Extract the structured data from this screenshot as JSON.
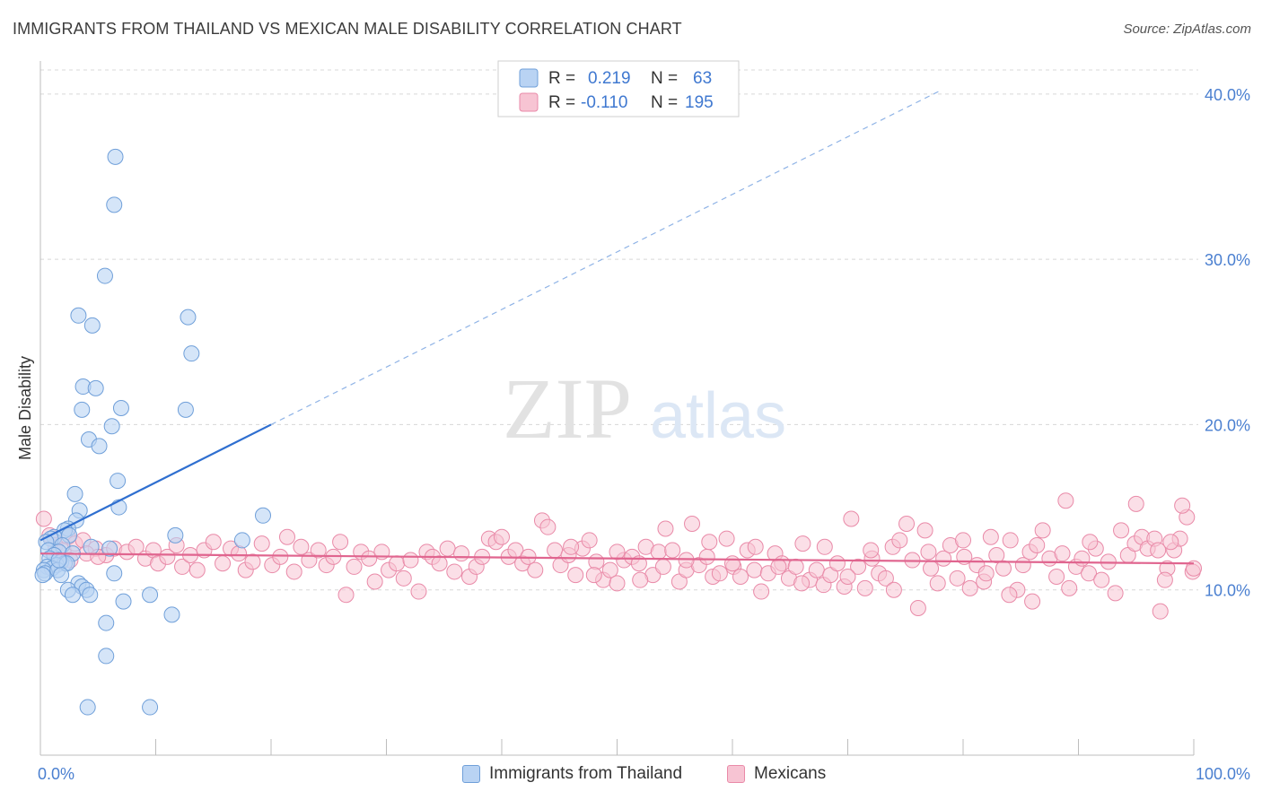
{
  "title": "IMMIGRANTS FROM THAILAND VS MEXICAN MALE DISABILITY CORRELATION CHART",
  "source": "Source: ZipAtlas.com",
  "watermark": {
    "zip": "ZIP",
    "atlas": "atlas"
  },
  "colors": {
    "blue_fill": "#b9d3f3",
    "blue_stroke": "#6f9fd9",
    "blue_line": "#2f6fd0",
    "pink_fill": "#f7c4d3",
    "pink_stroke": "#e98aa8",
    "pink_line": "#e0658f",
    "axis_label": "#4a7fd0",
    "grid": "#d8d8d8"
  },
  "legend_box": {
    "rows": [
      {
        "r_label": "R =",
        "r_value": "0.219",
        "n_label": "N =",
        "n_value": "63"
      },
      {
        "r_label": "R =",
        "r_value": "-0.110",
        "n_label": "N =",
        "n_value": "195"
      }
    ]
  },
  "chart_data": {
    "type": "scatter",
    "ylabel": "Male Disability",
    "xlabel": "",
    "xlim": [
      0,
      100
    ],
    "ylim": [
      0,
      42
    ],
    "x_tick_labels": [
      "0.0%",
      "100.0%"
    ],
    "y_ticks": [
      10,
      20,
      30,
      40
    ],
    "y_tick_labels": [
      "10.0%",
      "20.0%",
      "30.0%",
      "40.0%"
    ],
    "grid": true,
    "legend_position": "top-center",
    "series": [
      {
        "name": "Immigrants from Thailand",
        "trend": {
          "x0": 0,
          "y0": 13.0,
          "x1": 20,
          "y1": 20.0,
          "dash_to_x": 78,
          "dash_to_y": 40.2
        },
        "points": [
          [
            6.5,
            36.2
          ],
          [
            6.4,
            33.3
          ],
          [
            5.6,
            29.0
          ],
          [
            3.3,
            26.6
          ],
          [
            4.5,
            26.0
          ],
          [
            12.8,
            26.5
          ],
          [
            13.1,
            24.3
          ],
          [
            3.7,
            22.3
          ],
          [
            4.8,
            22.2
          ],
          [
            3.6,
            20.9
          ],
          [
            7.0,
            21.0
          ],
          [
            12.6,
            20.9
          ],
          [
            6.2,
            19.9
          ],
          [
            4.2,
            19.1
          ],
          [
            5.1,
            18.7
          ],
          [
            6.7,
            16.6
          ],
          [
            3.0,
            15.8
          ],
          [
            6.8,
            15.0
          ],
          [
            3.4,
            14.8
          ],
          [
            19.3,
            14.5
          ],
          [
            3.1,
            14.2
          ],
          [
            2.4,
            13.7
          ],
          [
            2.1,
            13.6
          ],
          [
            11.7,
            13.3
          ],
          [
            17.5,
            13.0
          ],
          [
            1.2,
            13.2
          ],
          [
            0.9,
            13.1
          ],
          [
            2.5,
            13.3
          ],
          [
            0.5,
            12.9
          ],
          [
            1.9,
            12.7
          ],
          [
            4.4,
            12.6
          ],
          [
            0.7,
            12.4
          ],
          [
            1.6,
            12.3
          ],
          [
            2.8,
            12.2
          ],
          [
            6.0,
            12.5
          ],
          [
            1.2,
            12.1
          ],
          [
            0.8,
            11.9
          ],
          [
            1.8,
            11.7
          ],
          [
            2.1,
            11.6
          ],
          [
            1.4,
            11.5
          ],
          [
            0.6,
            11.4
          ],
          [
            1.0,
            11.3
          ],
          [
            0.3,
            11.2
          ],
          [
            0.4,
            11.0
          ],
          [
            0.2,
            10.9
          ],
          [
            1.5,
            11.2
          ],
          [
            2.3,
            11.6
          ],
          [
            1.8,
            10.9
          ],
          [
            6.4,
            11.0
          ],
          [
            3.3,
            10.4
          ],
          [
            3.6,
            10.2
          ],
          [
            2.4,
            10.0
          ],
          [
            4.0,
            10.0
          ],
          [
            4.3,
            9.7
          ],
          [
            2.8,
            9.7
          ],
          [
            7.2,
            9.3
          ],
          [
            9.5,
            9.7
          ],
          [
            11.4,
            8.5
          ],
          [
            5.7,
            8.0
          ],
          [
            5.7,
            6.0
          ],
          [
            4.1,
            2.9
          ],
          [
            9.5,
            2.9
          ],
          [
            1.6,
            11.8
          ]
        ]
      },
      {
        "name": "Mexicans",
        "trend": {
          "x0": 0,
          "y0": 12.2,
          "x1": 100,
          "y1": 11.6
        },
        "points": [
          [
            0.3,
            14.3
          ],
          [
            0.8,
            13.3
          ],
          [
            2.4,
            13.2
          ],
          [
            1.3,
            12.7
          ],
          [
            2.0,
            12.4
          ],
          [
            3.0,
            12.8
          ],
          [
            3.7,
            13.0
          ],
          [
            4.8,
            12.5
          ],
          [
            5.7,
            12.1
          ],
          [
            6.4,
            12.5
          ],
          [
            2.6,
            11.8
          ],
          [
            4.0,
            12.2
          ],
          [
            5.0,
            12.0
          ],
          [
            7.5,
            12.3
          ],
          [
            8.3,
            12.6
          ],
          [
            9.1,
            11.9
          ],
          [
            9.8,
            12.4
          ],
          [
            10.2,
            11.6
          ],
          [
            11.0,
            12.0
          ],
          [
            11.8,
            12.7
          ],
          [
            12.3,
            11.4
          ],
          [
            13.0,
            12.1
          ],
          [
            13.6,
            11.2
          ],
          [
            14.2,
            12.4
          ],
          [
            15.0,
            12.9
          ],
          [
            15.8,
            11.6
          ],
          [
            16.5,
            12.5
          ],
          [
            17.2,
            12.2
          ],
          [
            17.8,
            11.2
          ],
          [
            18.4,
            11.7
          ],
          [
            19.2,
            12.8
          ],
          [
            20.1,
            11.5
          ],
          [
            20.8,
            12.0
          ],
          [
            21.4,
            13.2
          ],
          [
            22.0,
            11.1
          ],
          [
            22.6,
            12.6
          ],
          [
            23.3,
            11.8
          ],
          [
            24.1,
            12.4
          ],
          [
            24.8,
            11.5
          ],
          [
            25.4,
            12.0
          ],
          [
            26.0,
            12.9
          ],
          [
            26.5,
            9.7
          ],
          [
            27.2,
            11.4
          ],
          [
            27.8,
            12.3
          ],
          [
            28.5,
            11.9
          ],
          [
            29.0,
            10.5
          ],
          [
            29.6,
            12.3
          ],
          [
            30.2,
            11.2
          ],
          [
            30.9,
            11.6
          ],
          [
            31.5,
            10.7
          ],
          [
            32.1,
            11.8
          ],
          [
            32.8,
            9.9
          ],
          [
            33.5,
            12.3
          ],
          [
            34.0,
            12.0
          ],
          [
            34.6,
            11.6
          ],
          [
            35.3,
            12.5
          ],
          [
            35.9,
            11.1
          ],
          [
            36.5,
            12.2
          ],
          [
            37.2,
            10.8
          ],
          [
            37.8,
            11.4
          ],
          [
            38.3,
            12.0
          ],
          [
            38.9,
            13.1
          ],
          [
            39.5,
            12.9
          ],
          [
            40.0,
            13.2
          ],
          [
            40.6,
            12.0
          ],
          [
            41.2,
            12.4
          ],
          [
            41.8,
            11.6
          ],
          [
            42.3,
            12.0
          ],
          [
            42.9,
            11.2
          ],
          [
            43.5,
            14.2
          ],
          [
            44.0,
            13.8
          ],
          [
            44.6,
            12.4
          ],
          [
            45.1,
            11.5
          ],
          [
            45.8,
            12.1
          ],
          [
            46.4,
            10.9
          ],
          [
            47.0,
            12.5
          ],
          [
            47.6,
            13.0
          ],
          [
            48.2,
            11.7
          ],
          [
            48.8,
            10.6
          ],
          [
            49.4,
            11.2
          ],
          [
            50.0,
            10.4
          ],
          [
            50.6,
            11.8
          ],
          [
            51.3,
            12.0
          ],
          [
            51.9,
            11.6
          ],
          [
            52.5,
            12.6
          ],
          [
            53.1,
            10.9
          ],
          [
            53.6,
            12.3
          ],
          [
            54.2,
            13.7
          ],
          [
            54.8,
            12.4
          ],
          [
            55.4,
            10.5
          ],
          [
            56.0,
            11.2
          ],
          [
            56.5,
            14.0
          ],
          [
            57.1,
            11.5
          ],
          [
            57.8,
            12.0
          ],
          [
            58.3,
            10.8
          ],
          [
            58.9,
            11.0
          ],
          [
            59.5,
            13.1
          ],
          [
            60.1,
            11.4
          ],
          [
            60.7,
            10.8
          ],
          [
            61.3,
            12.4
          ],
          [
            61.9,
            11.2
          ],
          [
            62.5,
            9.9
          ],
          [
            63.1,
            11.0
          ],
          [
            63.7,
            12.2
          ],
          [
            64.3,
            11.6
          ],
          [
            64.9,
            10.7
          ],
          [
            65.5,
            11.4
          ],
          [
            66.1,
            12.8
          ],
          [
            66.7,
            10.6
          ],
          [
            67.3,
            11.2
          ],
          [
            67.9,
            10.3
          ],
          [
            68.5,
            10.9
          ],
          [
            69.1,
            11.6
          ],
          [
            69.7,
            10.2
          ],
          [
            70.3,
            14.3
          ],
          [
            70.9,
            11.4
          ],
          [
            71.5,
            10.1
          ],
          [
            72.1,
            11.9
          ],
          [
            72.7,
            11.0
          ],
          [
            73.3,
            10.7
          ],
          [
            73.9,
            12.6
          ],
          [
            74.5,
            13.0
          ],
          [
            75.1,
            14.0
          ],
          [
            75.6,
            11.8
          ],
          [
            76.1,
            8.9
          ],
          [
            76.7,
            13.6
          ],
          [
            77.2,
            11.3
          ],
          [
            77.8,
            10.4
          ],
          [
            78.3,
            11.9
          ],
          [
            78.9,
            12.7
          ],
          [
            79.5,
            10.7
          ],
          [
            80.1,
            12.0
          ],
          [
            80.6,
            10.1
          ],
          [
            81.2,
            11.5
          ],
          [
            81.8,
            10.5
          ],
          [
            82.4,
            13.2
          ],
          [
            82.9,
            12.1
          ],
          [
            83.5,
            11.3
          ],
          [
            84.1,
            13.0
          ],
          [
            84.7,
            10.0
          ],
          [
            85.2,
            11.5
          ],
          [
            85.8,
            12.3
          ],
          [
            86.4,
            12.7
          ],
          [
            86.9,
            13.6
          ],
          [
            87.5,
            11.9
          ],
          [
            88.1,
            10.8
          ],
          [
            88.6,
            12.2
          ],
          [
            89.2,
            10.1
          ],
          [
            89.8,
            11.4
          ],
          [
            90.3,
            11.9
          ],
          [
            90.9,
            11.0
          ],
          [
            91.5,
            12.5
          ],
          [
            92.0,
            10.6
          ],
          [
            92.6,
            11.7
          ],
          [
            93.2,
            9.8
          ],
          [
            93.7,
            13.6
          ],
          [
            94.3,
            12.1
          ],
          [
            94.9,
            12.8
          ],
          [
            95.5,
            13.2
          ],
          [
            96.0,
            12.5
          ],
          [
            96.6,
            13.1
          ],
          [
            97.1,
            8.7
          ],
          [
            97.7,
            11.3
          ],
          [
            98.3,
            12.4
          ],
          [
            98.8,
            13.1
          ],
          [
            99.4,
            14.4
          ],
          [
            99.9,
            11.1
          ],
          [
            96.9,
            12.4
          ],
          [
            98.0,
            12.9
          ],
          [
            99.0,
            15.1
          ],
          [
            100.0,
            11.3
          ],
          [
            97.5,
            10.6
          ],
          [
            95.0,
            15.2
          ],
          [
            91.0,
            12.9
          ],
          [
            88.9,
            15.4
          ],
          [
            86.0,
            9.3
          ],
          [
            84.0,
            9.7
          ],
          [
            82.0,
            11.0
          ],
          [
            80.0,
            13.0
          ],
          [
            77.0,
            12.3
          ],
          [
            74.0,
            10.0
          ],
          [
            72.0,
            12.4
          ],
          [
            70.0,
            10.8
          ],
          [
            68.0,
            12.6
          ],
          [
            66.0,
            10.4
          ],
          [
            64.0,
            11.4
          ],
          [
            62.0,
            12.6
          ],
          [
            60.0,
            11.6
          ],
          [
            58.0,
            12.9
          ],
          [
            56.0,
            11.8
          ],
          [
            54.0,
            11.4
          ],
          [
            52.0,
            10.6
          ],
          [
            50.0,
            12.3
          ],
          [
            48.0,
            10.9
          ],
          [
            46.0,
            12.6
          ]
        ]
      }
    ]
  }
}
